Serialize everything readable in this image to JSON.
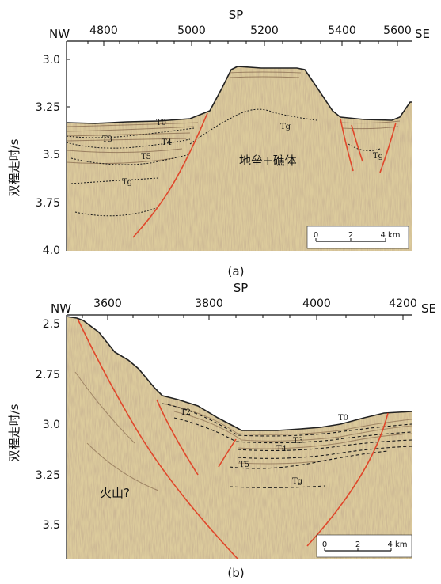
{
  "figure": {
    "panels": [
      {
        "id": "a",
        "caption": "(a)",
        "sp_label": "SP",
        "dir_left": "NW",
        "dir_right": "SE",
        "y_axis_label": "双程走时/s",
        "sp_ticks": [
          "4800",
          "5000",
          "5200",
          "5400",
          "5600"
        ],
        "y_ticks": [
          "3.0",
          "3.25",
          "3.5",
          "3.75",
          "4.0"
        ],
        "horizon_labels": [
          "T0",
          "T3",
          "T4",
          "T5",
          "Tg",
          "Tg",
          "Tg"
        ],
        "annotation": "地垒+礁体",
        "scale_ticks": [
          "0",
          "2",
          "4 km"
        ]
      },
      {
        "id": "b",
        "caption": "(b)",
        "sp_label": "SP",
        "dir_left": "NW",
        "dir_right": "SE",
        "y_axis_label": "双程走时/s",
        "sp_ticks": [
          "3600",
          "3800",
          "4000",
          "4200"
        ],
        "y_ticks": [
          "2.5",
          "2.75",
          "3.0",
          "3.25",
          "3.5"
        ],
        "horizon_labels": [
          "T2",
          "T0",
          "T3",
          "T4",
          "T5",
          "Tg"
        ],
        "annotation": "火山?",
        "scale_ticks": [
          "0",
          "2",
          "4 km"
        ]
      }
    ],
    "colors": {
      "fault": "#e0472b",
      "horizon": "#1a1a1a",
      "seismic_base": "#d9c79a",
      "seismic_dark": "#8a6a4a"
    }
  }
}
